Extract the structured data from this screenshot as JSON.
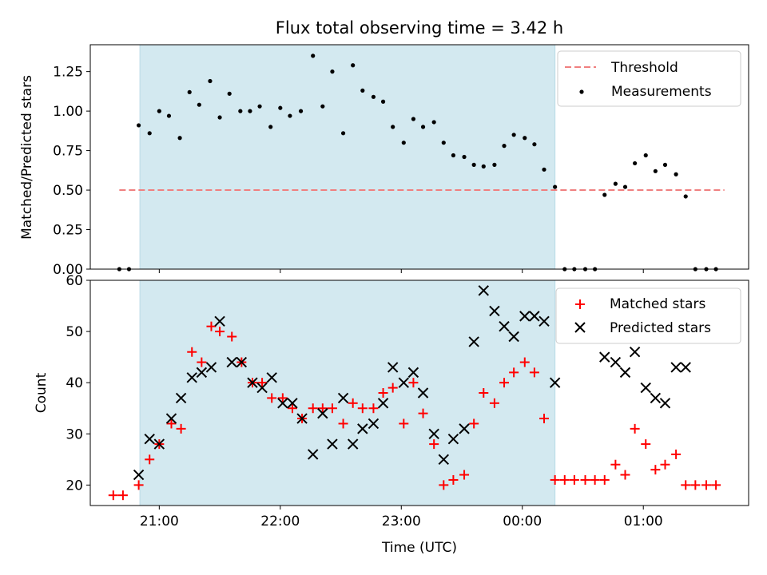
{
  "chart_data": {
    "type": "scatter",
    "title": "Flux total observing time = 3.42 h",
    "xlabel": "Time (UTC)",
    "x_ticks": [
      "21:00",
      "22:00",
      "23:00",
      "00:00",
      "01:00"
    ],
    "x_ticks_hours": [
      21,
      22,
      23,
      24,
      25
    ],
    "x_range_hours": [
      20.43,
      25.87
    ],
    "observing_window_hours": [
      20.84,
      24.27
    ],
    "window_color": "#d3e9f0",
    "panels": [
      {
        "name": "ratio",
        "ylabel": "Matched/Predicted stars",
        "ylim": [
          0,
          1.42
        ],
        "yticks": [
          0.0,
          0.25,
          0.5,
          0.75,
          1.0,
          1.25
        ],
        "ytick_labels": [
          "0.00",
          "0.25",
          "0.50",
          "0.75",
          "1.00",
          "1.25"
        ],
        "legend": {
          "position": "upper right",
          "entries": [
            "Threshold",
            "Measurements"
          ]
        },
        "threshold": {
          "name": "Threshold",
          "value": 0.5,
          "x_range": [
            20.67,
            25.67
          ],
          "color": "#f08080"
        },
        "series": [
          {
            "name": "Measurements",
            "marker": "dot",
            "color": "#000000",
            "points": [
              [
                20.67,
                0.0
              ],
              [
                20.75,
                0.0
              ],
              [
                20.83,
                0.91
              ],
              [
                20.92,
                0.86
              ],
              [
                21.0,
                1.0
              ],
              [
                21.08,
                0.97
              ],
              [
                21.17,
                0.83
              ],
              [
                21.25,
                1.12
              ],
              [
                21.33,
                1.04
              ],
              [
                21.42,
                1.19
              ],
              [
                21.5,
                0.96
              ],
              [
                21.58,
                1.11
              ],
              [
                21.67,
                1.0
              ],
              [
                21.75,
                1.0
              ],
              [
                21.83,
                1.03
              ],
              [
                21.92,
                0.9
              ],
              [
                22.0,
                1.02
              ],
              [
                22.08,
                0.97
              ],
              [
                22.17,
                1.0
              ],
              [
                22.27,
                1.35
              ],
              [
                22.35,
                1.03
              ],
              [
                22.43,
                1.25
              ],
              [
                22.52,
                0.86
              ],
              [
                22.6,
                1.29
              ],
              [
                22.68,
                1.13
              ],
              [
                22.77,
                1.09
              ],
              [
                22.85,
                1.06
              ],
              [
                22.93,
                0.9
              ],
              [
                23.02,
                0.8
              ],
              [
                23.1,
                0.95
              ],
              [
                23.18,
                0.9
              ],
              [
                23.27,
                0.93
              ],
              [
                23.35,
                0.8
              ],
              [
                23.43,
                0.72
              ],
              [
                23.52,
                0.71
              ],
              [
                23.6,
                0.66
              ],
              [
                23.68,
                0.65
              ],
              [
                23.77,
                0.66
              ],
              [
                23.85,
                0.78
              ],
              [
                23.93,
                0.85
              ],
              [
                24.02,
                0.83
              ],
              [
                24.1,
                0.79
              ],
              [
                24.18,
                0.63
              ],
              [
                24.27,
                0.52
              ],
              [
                24.35,
                0.0
              ],
              [
                24.43,
                0.0
              ],
              [
                24.52,
                0.0
              ],
              [
                24.6,
                0.0
              ],
              [
                24.68,
                0.47
              ],
              [
                24.77,
                0.54
              ],
              [
                24.85,
                0.52
              ],
              [
                24.93,
                0.67
              ],
              [
                25.02,
                0.72
              ],
              [
                25.1,
                0.62
              ],
              [
                25.18,
                0.66
              ],
              [
                25.27,
                0.6
              ],
              [
                25.35,
                0.46
              ],
              [
                25.43,
                0.0
              ],
              [
                25.52,
                0.0
              ],
              [
                25.6,
                0.0
              ]
            ]
          }
        ]
      },
      {
        "name": "counts",
        "ylabel": "Count",
        "ylim": [
          16,
          60
        ],
        "yticks": [
          20,
          30,
          40,
          50,
          60
        ],
        "ytick_labels": [
          "20",
          "30",
          "40",
          "50",
          "60"
        ],
        "legend": {
          "position": "upper right",
          "entries": [
            "Matched stars",
            "Predicted stars"
          ]
        },
        "series": [
          {
            "name": "Matched stars",
            "marker": "plus",
            "color": "#ff0000",
            "points": [
              [
                20.62,
                18
              ],
              [
                20.7,
                18
              ],
              [
                20.83,
                20
              ],
              [
                20.92,
                25
              ],
              [
                21.0,
                28
              ],
              [
                21.1,
                32
              ],
              [
                21.18,
                31
              ],
              [
                21.27,
                46
              ],
              [
                21.35,
                44
              ],
              [
                21.43,
                51
              ],
              [
                21.5,
                50
              ],
              [
                21.6,
                49
              ],
              [
                21.68,
                44
              ],
              [
                21.77,
                40
              ],
              [
                21.85,
                40
              ],
              [
                21.93,
                37
              ],
              [
                22.02,
                37
              ],
              [
                22.1,
                35
              ],
              [
                22.18,
                33
              ],
              [
                22.27,
                35
              ],
              [
                22.35,
                35
              ],
              [
                22.43,
                35
              ],
              [
                22.52,
                32
              ],
              [
                22.6,
                36
              ],
              [
                22.68,
                35
              ],
              [
                22.77,
                35
              ],
              [
                22.85,
                38
              ],
              [
                22.93,
                39
              ],
              [
                23.02,
                32
              ],
              [
                23.1,
                40
              ],
              [
                23.18,
                34
              ],
              [
                23.27,
                28
              ],
              [
                23.35,
                20
              ],
              [
                23.43,
                21
              ],
              [
                23.52,
                22
              ],
              [
                23.6,
                32
              ],
              [
                23.68,
                38
              ],
              [
                23.77,
                36
              ],
              [
                23.85,
                40
              ],
              [
                23.93,
                42
              ],
              [
                24.02,
                44
              ],
              [
                24.1,
                42
              ],
              [
                24.18,
                33
              ],
              [
                24.27,
                21
              ],
              [
                24.35,
                21
              ],
              [
                24.43,
                21
              ],
              [
                24.52,
                21
              ],
              [
                24.6,
                21
              ],
              [
                24.68,
                21
              ],
              [
                24.77,
                24
              ],
              [
                24.85,
                22
              ],
              [
                24.93,
                31
              ],
              [
                25.02,
                28
              ],
              [
                25.1,
                23
              ],
              [
                25.18,
                24
              ],
              [
                25.27,
                26
              ],
              [
                25.35,
                20
              ],
              [
                25.43,
                20
              ],
              [
                25.52,
                20
              ],
              [
                25.6,
                20
              ]
            ]
          },
          {
            "name": "Predicted stars",
            "marker": "x",
            "color": "#000000",
            "points": [
              [
                20.83,
                22
              ],
              [
                20.92,
                29
              ],
              [
                21.0,
                28
              ],
              [
                21.1,
                33
              ],
              [
                21.18,
                37
              ],
              [
                21.27,
                41
              ],
              [
                21.35,
                42
              ],
              [
                21.43,
                43
              ],
              [
                21.5,
                52
              ],
              [
                21.6,
                44
              ],
              [
                21.68,
                44
              ],
              [
                21.77,
                40
              ],
              [
                21.85,
                39
              ],
              [
                21.93,
                41
              ],
              [
                22.02,
                36
              ],
              [
                22.1,
                36
              ],
              [
                22.18,
                33
              ],
              [
                22.27,
                26
              ],
              [
                22.35,
                34
              ],
              [
                22.43,
                28
              ],
              [
                22.52,
                37
              ],
              [
                22.6,
                28
              ],
              [
                22.68,
                31
              ],
              [
                22.77,
                32
              ],
              [
                22.85,
                36
              ],
              [
                22.93,
                43
              ],
              [
                23.02,
                40
              ],
              [
                23.1,
                42
              ],
              [
                23.18,
                38
              ],
              [
                23.27,
                30
              ],
              [
                23.35,
                25
              ],
              [
                23.43,
                29
              ],
              [
                23.52,
                31
              ],
              [
                23.6,
                48
              ],
              [
                23.68,
                58
              ],
              [
                23.77,
                54
              ],
              [
                23.85,
                51
              ],
              [
                23.93,
                49
              ],
              [
                24.02,
                53
              ],
              [
                24.1,
                53
              ],
              [
                24.18,
                52
              ],
              [
                24.27,
                40
              ],
              [
                24.68,
                45
              ],
              [
                24.77,
                44
              ],
              [
                24.85,
                42
              ],
              [
                24.93,
                46
              ],
              [
                25.02,
                39
              ],
              [
                25.1,
                37
              ],
              [
                25.18,
                36
              ],
              [
                25.27,
                43
              ],
              [
                25.35,
                43
              ]
            ]
          }
        ]
      }
    ]
  }
}
